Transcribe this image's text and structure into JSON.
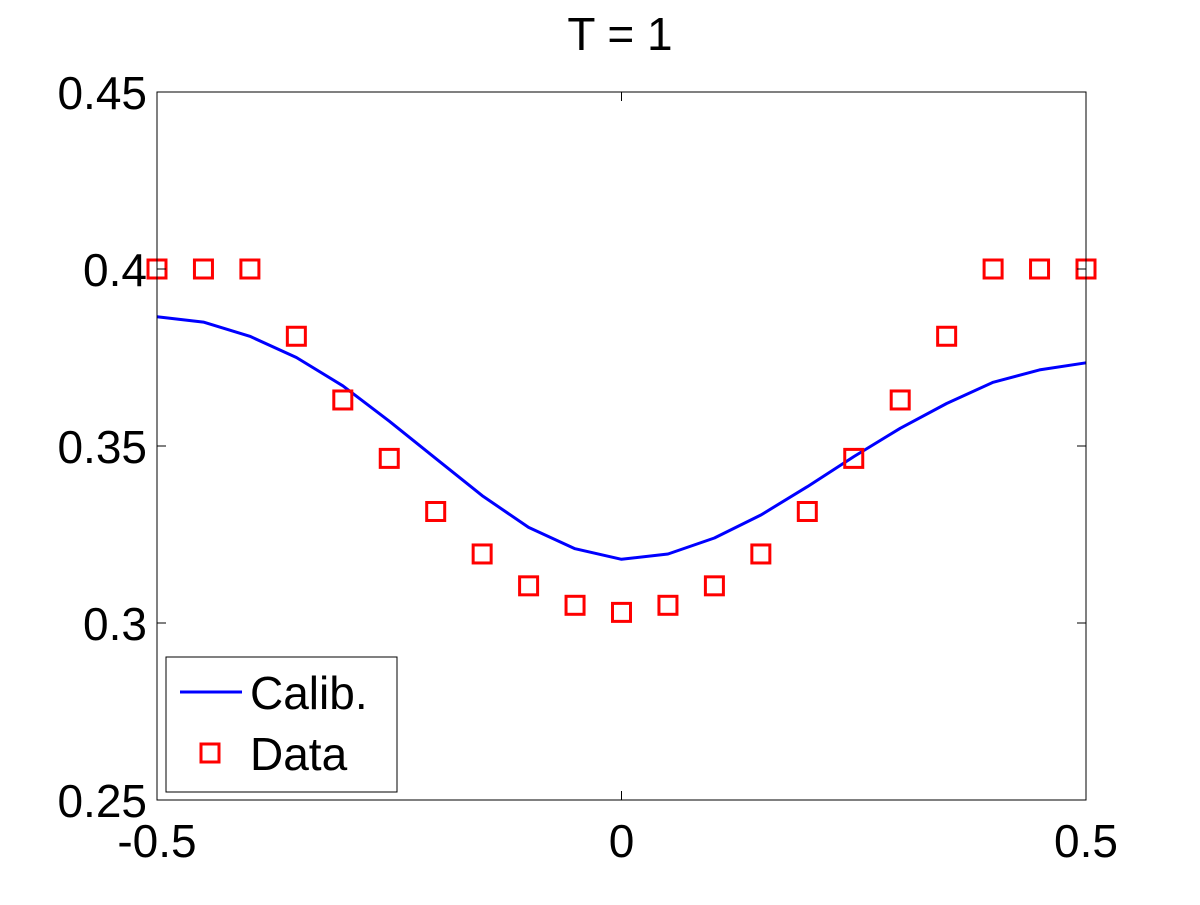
{
  "chart_data": {
    "type": "line",
    "title": "T = 1",
    "xlabel": "",
    "ylabel": "",
    "xlim": [
      -0.5,
      0.5
    ],
    "ylim": [
      0.25,
      0.45
    ],
    "x_ticks": [
      -0.5,
      0,
      0.5
    ],
    "x_tick_labels": [
      "-0.5",
      "0",
      "0.5"
    ],
    "y_ticks": [
      0.25,
      0.3,
      0.35,
      0.4,
      0.45
    ],
    "y_tick_labels": [
      "0.25",
      "0.3",
      "0.35",
      "0.4",
      "0.45"
    ],
    "grid": false,
    "legend_position": "bottom-left",
    "series": [
      {
        "name": "Calib.",
        "style": "line",
        "color": "#0000ff",
        "x": [
          -0.5,
          -0.45,
          -0.4,
          -0.35,
          -0.3,
          -0.25,
          -0.2,
          -0.15,
          -0.1,
          -0.05,
          0,
          0.05,
          0.1,
          0.15,
          0.2,
          0.25,
          0.3,
          0.35,
          0.4,
          0.45,
          0.5
        ],
        "y": [
          0.3865,
          0.385,
          0.381,
          0.375,
          0.367,
          0.357,
          0.3465,
          0.336,
          0.327,
          0.321,
          0.318,
          0.3195,
          0.324,
          0.3305,
          0.3385,
          0.347,
          0.355,
          0.362,
          0.368,
          0.3715,
          0.3735
        ]
      },
      {
        "name": "Data",
        "style": "square-markers",
        "color": "#ff0000",
        "x": [
          -0.5,
          -0.45,
          -0.4,
          -0.35,
          -0.3,
          -0.25,
          -0.2,
          -0.15,
          -0.1,
          -0.05,
          0,
          0.05,
          0.1,
          0.15,
          0.2,
          0.25,
          0.3,
          0.35,
          0.4,
          0.45,
          0.5
        ],
        "y": [
          0.4,
          0.4,
          0.4,
          0.381,
          0.363,
          0.3465,
          0.3315,
          0.3195,
          0.3105,
          0.305,
          0.303,
          0.305,
          0.3105,
          0.3195,
          0.3315,
          0.3465,
          0.363,
          0.381,
          0.4,
          0.4,
          0.4
        ]
      }
    ]
  }
}
